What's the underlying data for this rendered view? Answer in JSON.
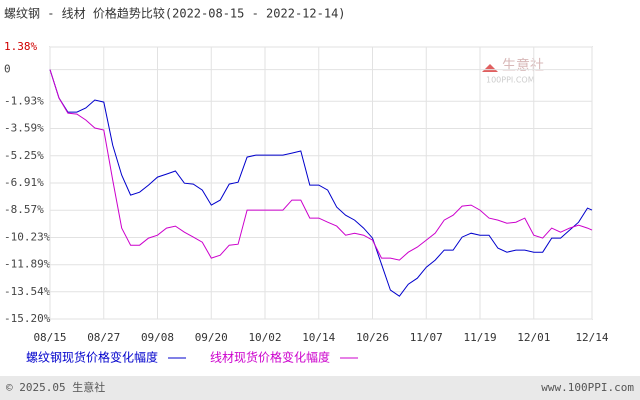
{
  "chart_data": {
    "type": "line",
    "title": "螺纹钢 - 线材 价格趋势比较(2022-08-15 - 2022-12-14)",
    "watermark": "生意社",
    "watermark_sub": "100PPI.COM",
    "footer_left": "© 2025.05 生意社",
    "footer_right": "www.100PPI.com",
    "x": [
      "08/15",
      "08/17",
      "08/19",
      "08/21",
      "08/23",
      "08/25",
      "08/27",
      "08/29",
      "08/31",
      "09/02",
      "09/04",
      "09/06",
      "09/08",
      "09/10",
      "09/12",
      "09/14",
      "09/16",
      "09/18",
      "09/20",
      "09/22",
      "09/24",
      "09/26",
      "09/28",
      "09/30",
      "10/02",
      "10/04",
      "10/06",
      "10/08",
      "10/10",
      "10/12",
      "10/14",
      "10/16",
      "10/18",
      "10/20",
      "10/22",
      "10/24",
      "10/26",
      "10/28",
      "10/30",
      "11/01",
      "11/03",
      "11/05",
      "11/07",
      "11/09",
      "11/11",
      "11/13",
      "11/15",
      "11/17",
      "11/19",
      "11/21",
      "11/23",
      "11/25",
      "11/27",
      "11/29",
      "12/01",
      "12/03",
      "12/05",
      "12/07",
      "12/09",
      "12/11",
      "12/13",
      "12/14"
    ],
    "series": [
      {
        "name": "螺纹钢现货价格变化幅度",
        "color": "#0000cc",
        "values": [
          0,
          -1.73,
          -2.59,
          -2.59,
          -2.34,
          -1.85,
          -1.98,
          -4.6,
          -6.43,
          -7.65,
          -7.47,
          -7.04,
          -6.55,
          -6.37,
          -6.18,
          -6.92,
          -6.98,
          -7.34,
          -8.26,
          -7.95,
          -6.98,
          -6.86,
          -5.33,
          -5.21,
          -5.21,
          -5.21,
          -5.21,
          -5.09,
          -4.96,
          -7.04,
          -7.04,
          -7.34,
          -8.38,
          -8.87,
          -9.17,
          -9.66,
          -10.27,
          -11.86,
          -13.44,
          -13.81,
          -13.08,
          -12.71,
          -12.04,
          -11.61,
          -11.0,
          -11.0,
          -10.21,
          -9.97,
          -10.09,
          -10.09,
          -10.88,
          -11.13,
          -11.0,
          -11.0,
          -11.13,
          -11.13,
          -10.27,
          -10.27,
          -9.78,
          -9.3,
          -8.44,
          -8.56
        ]
      },
      {
        "name": "线材现货价格变化幅度",
        "color": "#cc00cc",
        "values": [
          0,
          -1.73,
          -2.65,
          -2.71,
          -3.07,
          -3.56,
          -3.68,
          -6.73,
          -9.66,
          -10.7,
          -10.7,
          -10.27,
          -10.09,
          -9.66,
          -9.54,
          -9.91,
          -10.21,
          -10.52,
          -11.49,
          -11.31,
          -10.7,
          -10.64,
          -8.56,
          -8.56,
          -8.56,
          -8.56,
          -8.56,
          -7.95,
          -7.95,
          -9.05,
          -9.05,
          -9.3,
          -9.54,
          -10.09,
          -9.97,
          -10.09,
          -10.39,
          -11.49,
          -11.49,
          -11.61,
          -11.13,
          -10.82,
          -10.39,
          -9.97,
          -9.17,
          -8.87,
          -8.32,
          -8.26,
          -8.56,
          -9.05,
          -9.17,
          -9.36,
          -9.3,
          -9.05,
          -10.09,
          -10.27,
          -9.66,
          -9.91,
          -9.66,
          -9.48,
          -9.66,
          -9.78
        ]
      }
    ],
    "xlim": [
      "08/15",
      "12/14"
    ],
    "xticks": [
      "08/15",
      "08/27",
      "09/08",
      "09/20",
      "10/02",
      "10/14",
      "10/26",
      "11/07",
      "11/19",
      "12/01",
      "12/14"
    ],
    "ylim": [
      -15.2,
      1.38
    ],
    "yticks": [
      {
        "value": 1.38,
        "label": "1.38%"
      },
      0,
      {
        "value": -1.93,
        "label": "-1.93%"
      },
      {
        "value": -3.59,
        "label": "-3.59%"
      },
      {
        "value": -5.25,
        "label": "-5.25%"
      },
      {
        "value": -6.91,
        "label": "-6.91%"
      },
      {
        "value": -8.57,
        "label": "-8.57%"
      },
      {
        "value": -10.23,
        "label": "-10.23%"
      },
      {
        "value": -11.89,
        "label": "-11.89%"
      },
      {
        "value": -13.54,
        "label": "-13.54%"
      },
      {
        "value": -15.2,
        "label": "-15.20%"
      }
    ],
    "grid": true
  }
}
